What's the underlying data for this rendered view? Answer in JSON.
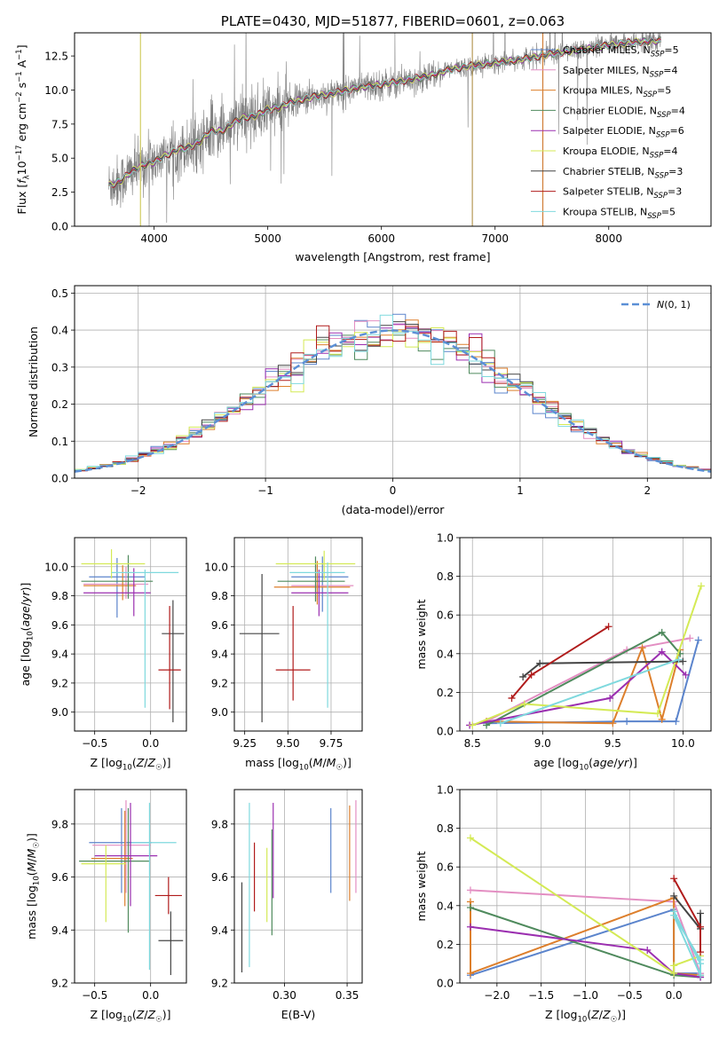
{
  "colors": {
    "Chabrier MILES": "#5b84cc",
    "Salpeter MILES": "#e38ec2",
    "Kroupa MILES": "#dd7f2c",
    "Chabrier ELODIE": "#4f8a5d",
    "Salpeter ELODIE": "#9b2fb0",
    "Kroupa ELODIE": "#d4ea55",
    "Chabrier STELIB": "#444444",
    "Salpeter STELIB": "#b01b1b",
    "Kroupa STELIB": "#7fd9de",
    "data": "#7f7f7f",
    "normal": "#5b8fd6"
  },
  "chart_data": [
    {
      "id": "spectrum",
      "type": "line",
      "title": "PLATE=0430, MJD=51877, FIBERID=0601, z=0.063",
      "xlabel": "wavelength [Angstrom, rest frame]",
      "ylabel": "Flux [f_λ10^-17 erg cm^-2 s^-1 A^-1]",
      "xlim": [
        3300,
        8900
      ],
      "ylim": [
        0,
        14.2
      ],
      "xticks": [
        4000,
        5000,
        6000,
        7000,
        8000
      ],
      "yticks": [
        0.0,
        2.5,
        5.0,
        7.5,
        10.0,
        12.5
      ],
      "legend_position": "right",
      "grid": false,
      "legend": [
        {
          "label": "Chabrier MILES, N_SSP=5",
          "series": "Chabrier MILES"
        },
        {
          "label": "Salpeter MILES, N_SSP=4",
          "series": "Salpeter MILES"
        },
        {
          "label": "Kroupa MILES, N_SSP=5",
          "series": "Kroupa MILES"
        },
        {
          "label": "Chabrier ELODIE, N_SSP=4",
          "series": "Chabrier ELODIE"
        },
        {
          "label": "Salpeter ELODIE, N_SSP=6",
          "series": "Salpeter ELODIE"
        },
        {
          "label": "Kroupa ELODIE, N_SSP=4",
          "series": "Kroupa ELODIE"
        },
        {
          "label": "Chabrier STELIB, N_SSP=3",
          "series": "Chabrier STELIB"
        },
        {
          "label": "Salpeter STELIB, N_SSP=3",
          "series": "Salpeter STELIB"
        },
        {
          "label": "Kroupa STELIB, N_SSP=5",
          "series": "Kroupa STELIB"
        }
      ],
      "continuum": {
        "x": [
          3600,
          3700,
          3800,
          3900,
          4000,
          4100,
          4200,
          4300,
          4400,
          4500,
          4600,
          4700,
          4800,
          4900,
          5000,
          5100,
          5200,
          5400,
          5600,
          5800,
          6000,
          6200,
          6400,
          6600,
          6800,
          7000,
          7200,
          7400,
          7600,
          7800,
          8000,
          8200,
          8400
        ],
        "y": [
          3.0,
          3.3,
          4.0,
          4.5,
          4.7,
          5.2,
          5.6,
          5.8,
          6.2,
          7.0,
          7.0,
          7.6,
          8.0,
          8.1,
          8.6,
          8.7,
          9.1,
          9.5,
          9.8,
          10.2,
          10.4,
          10.7,
          11.0,
          11.5,
          11.8,
          12.0,
          12.2,
          12.5,
          12.8,
          13.0,
          13.3,
          13.5,
          13.6
        ]
      },
      "vertical_lines": [
        {
          "x": 3880,
          "color": "#d1cd63"
        },
        {
          "x": 6800,
          "color": "#b59a57"
        },
        {
          "x": 7420,
          "color": "#d07d35"
        }
      ]
    },
    {
      "id": "residuals",
      "type": "histogram",
      "xlabel": "(data-model)/error",
      "ylabel": "Normed distribution",
      "xlim": [
        -2.5,
        2.5
      ],
      "ylim": [
        0,
        0.52
      ],
      "xticks": [
        -2,
        -1,
        0,
        1,
        2
      ],
      "yticks": [
        0.0,
        0.1,
        0.2,
        0.3,
        0.4,
        0.5
      ],
      "grid": true,
      "legend_position": "top-right",
      "normal_label": "N(0,1)",
      "bin_width": 0.1,
      "series_names": [
        "Chabrier MILES",
        "Salpeter MILES",
        "Kroupa MILES",
        "Chabrier ELODIE",
        "Salpeter ELODIE",
        "Kroupa ELODIE",
        "Chabrier STELIB",
        "Salpeter STELIB",
        "Kroupa STELIB"
      ]
    },
    {
      "id": "age-vs-Z",
      "type": "errorbar",
      "xlabel": "Z [log10(Z/Z☉)]",
      "ylabel": "age [log10(age/yr)]",
      "xlim": [
        -0.68,
        0.32
      ],
      "ylim": [
        8.87,
        10.2
      ],
      "xticks": [
        -0.5,
        0.0
      ],
      "yticks": [
        9.0,
        9.2,
        9.4,
        9.6,
        9.8,
        10.0
      ],
      "grid": true,
      "points": [
        {
          "series": "Chabrier MILES",
          "x": -0.3,
          "xerr_lo": 0.25,
          "xerr_hi": 0.25,
          "y": 9.93,
          "yerr_lo": 0.28,
          "yerr_hi": 0.13
        },
        {
          "series": "Salpeter MILES",
          "x": -0.22,
          "xerr_lo": 0.38,
          "xerr_hi": 0.2,
          "y": 9.88,
          "yerr_lo": 0.1,
          "yerr_hi": 0.12
        },
        {
          "series": "Kroupa MILES",
          "x": -0.25,
          "xerr_lo": 0.35,
          "xerr_hi": 0.12,
          "y": 9.87,
          "yerr_lo": 0.1,
          "yerr_hi": 0.14
        },
        {
          "series": "Chabrier ELODIE",
          "x": -0.2,
          "xerr_lo": 0.42,
          "xerr_hi": 0.22,
          "y": 9.9,
          "yerr_lo": 0.12,
          "yerr_hi": 0.18
        },
        {
          "series": "Salpeter ELODIE",
          "x": -0.15,
          "xerr_lo": 0.45,
          "xerr_hi": 0.15,
          "y": 9.82,
          "yerr_lo": 0.16,
          "yerr_hi": 0.17
        },
        {
          "series": "Kroupa ELODIE",
          "x": -0.35,
          "xerr_lo": 0.27,
          "xerr_hi": 0.3,
          "y": 10.02,
          "yerr_lo": 0.1,
          "yerr_hi": 0.1
        },
        {
          "series": "Chabrier STELIB",
          "x": 0.2,
          "xerr_lo": 0.1,
          "xerr_hi": 0.1,
          "y": 9.54,
          "yerr_lo": 0.61,
          "yerr_hi": 0.23
        },
        {
          "series": "Salpeter STELIB",
          "x": 0.17,
          "xerr_lo": 0.1,
          "xerr_hi": 0.1,
          "y": 9.29,
          "yerr_lo": 0.27,
          "yerr_hi": 0.44
        },
        {
          "series": "Kroupa STELIB",
          "x": -0.05,
          "xerr_lo": 0.3,
          "xerr_hi": 0.3,
          "y": 9.96,
          "yerr_lo": 0.93,
          "yerr_hi": 0.02
        }
      ]
    },
    {
      "id": "age-vs-mass",
      "type": "errorbar",
      "xlabel": "mass [log10(M/M☉)]",
      "ylabel": "",
      "xlim": [
        9.19,
        9.93
      ],
      "ylim": [
        8.87,
        10.2
      ],
      "xticks": [
        9.25,
        9.5,
        9.75
      ],
      "yticks": [
        9.0,
        9.2,
        9.4,
        9.6,
        9.8,
        10.0
      ],
      "grid": true,
      "points": [
        {
          "series": "Chabrier MILES",
          "x": 9.7,
          "xerr_lo": 0.18,
          "xerr_hi": 0.15,
          "y": 9.93,
          "yerr_lo": 0.24,
          "yerr_hi": 0.14
        },
        {
          "series": "Salpeter MILES",
          "x": 9.67,
          "xerr_lo": 0.15,
          "xerr_hi": 0.21,
          "y": 9.87,
          "yerr_lo": 0.1,
          "yerr_hi": 0.16
        },
        {
          "series": "Kroupa MILES",
          "x": 9.67,
          "xerr_lo": 0.25,
          "xerr_hi": 0.19,
          "y": 9.86,
          "yerr_lo": 0.12,
          "yerr_hi": 0.18
        },
        {
          "series": "Chabrier ELODIE",
          "x": 9.66,
          "xerr_lo": 0.22,
          "xerr_hi": 0.17,
          "y": 9.9,
          "yerr_lo": 0.14,
          "yerr_hi": 0.17
        },
        {
          "series": "Salpeter ELODIE",
          "x": 9.68,
          "xerr_lo": 0.16,
          "xerr_hi": 0.17,
          "y": 9.82,
          "yerr_lo": 0.16,
          "yerr_hi": 0.16
        },
        {
          "series": "Kroupa ELODIE",
          "x": 9.71,
          "xerr_lo": 0.28,
          "xerr_hi": 0.18,
          "y": 10.02,
          "yerr_lo": 0.11,
          "yerr_hi": 0.09
        },
        {
          "series": "Chabrier STELIB",
          "x": 9.35,
          "xerr_lo": 0.13,
          "xerr_hi": 0.1,
          "y": 9.54,
          "yerr_lo": 0.61,
          "yerr_hi": 0.41
        },
        {
          "series": "Salpeter STELIB",
          "x": 9.53,
          "xerr_lo": 0.1,
          "xerr_hi": 0.1,
          "y": 9.29,
          "yerr_lo": 0.21,
          "yerr_hi": 0.44
        },
        {
          "series": "Kroupa STELIB",
          "x": 9.73,
          "xerr_lo": 0.22,
          "xerr_hi": 0.1,
          "y": 9.96,
          "yerr_lo": 0.93,
          "yerr_hi": 0.07
        }
      ]
    },
    {
      "id": "weight-vs-age",
      "type": "line",
      "xlabel": "age [log10(age/yr)]",
      "ylabel": "mass weight",
      "xlim": [
        8.41,
        10.2
      ],
      "ylim": [
        0,
        1.0
      ],
      "xticks": [
        8.5,
        9.0,
        9.5,
        10.0
      ],
      "yticks": [
        0.0,
        0.2,
        0.4,
        0.6,
        0.8,
        1.0
      ],
      "grid": true,
      "series": [
        {
          "name": "Chabrier MILES",
          "x": [
            8.6,
            9.6,
            9.95,
            10.11
          ],
          "y": [
            0.04,
            0.05,
            0.05,
            0.47
          ]
        },
        {
          "name": "Salpeter MILES",
          "x": [
            8.6,
            9.6,
            10.05
          ],
          "y": [
            0.05,
            0.42,
            0.48
          ]
        },
        {
          "name": "Kroupa MILES",
          "x": [
            8.6,
            9.5,
            9.71,
            9.85,
            9.98
          ],
          "y": [
            0.05,
            0.04,
            0.43,
            0.06,
            0.42
          ]
        },
        {
          "name": "Chabrier ELODIE",
          "x": [
            8.6,
            9.85,
            9.98
          ],
          "y": [
            0.03,
            0.51,
            0.4
          ]
        },
        {
          "name": "Salpeter ELODIE",
          "x": [
            8.48,
            9.48,
            9.85,
            10.02
          ],
          "y": [
            0.03,
            0.17,
            0.41,
            0.29
          ]
        },
        {
          "name": "Kroupa ELODIE",
          "x": [
            8.5,
            8.87,
            9.82,
            10.13
          ],
          "y": [
            0.03,
            0.14,
            0.09,
            0.75
          ]
        },
        {
          "name": "Chabrier STELIB",
          "x": [
            8.86,
            8.98,
            10.0
          ],
          "y": [
            0.28,
            0.35,
            0.36
          ]
        },
        {
          "name": "Salpeter STELIB",
          "x": [
            8.78,
            8.92,
            9.47
          ],
          "y": [
            0.17,
            0.29,
            0.54
          ]
        },
        {
          "name": "Kroupa STELIB",
          "x": [
            8.7,
            9.97
          ],
          "y": [
            0.04,
            0.37
          ]
        }
      ]
    },
    {
      "id": "mass-vs-Z",
      "type": "errorbar",
      "xlabel": "Z [log10(Z/Z☉)]",
      "ylabel": "mass [log10(M/M☉)]",
      "xlim": [
        -0.68,
        0.32
      ],
      "ylim": [
        9.2,
        9.93
      ],
      "xticks": [
        -0.5,
        0.0
      ],
      "yticks": [
        9.2,
        9.4,
        9.6,
        9.8
      ],
      "grid": true,
      "points": [
        {
          "series": "Chabrier MILES",
          "x": -0.26,
          "xerr_lo": 0.29,
          "xerr_hi": 0.27,
          "y": 9.73,
          "yerr_lo": 0.19,
          "yerr_hi": 0.13
        },
        {
          "series": "Salpeter MILES",
          "x": -0.22,
          "xerr_lo": 0.3,
          "xerr_hi": 0.22,
          "y": 9.72,
          "yerr_lo": 0.18,
          "yerr_hi": 0.17
        },
        {
          "series": "Kroupa MILES",
          "x": -0.23,
          "xerr_lo": 0.3,
          "xerr_hi": 0.07,
          "y": 9.67,
          "yerr_lo": 0.18,
          "yerr_hi": 0.18
        },
        {
          "series": "Chabrier ELODIE",
          "x": -0.2,
          "xerr_lo": 0.44,
          "xerr_hi": 0.19,
          "y": 9.66,
          "yerr_lo": 0.27,
          "yerr_hi": 0.2
        },
        {
          "series": "Salpeter ELODIE",
          "x": -0.18,
          "xerr_lo": 0.32,
          "xerr_hi": 0.24,
          "y": 9.68,
          "yerr_lo": 0.19,
          "yerr_hi": 0.2
        },
        {
          "series": "Kroupa ELODIE",
          "x": -0.4,
          "xerr_lo": 0.22,
          "xerr_hi": 0.18,
          "y": 9.65,
          "yerr_lo": 0.22,
          "yerr_hi": 0.07
        },
        {
          "series": "Chabrier STELIB",
          "x": 0.18,
          "xerr_lo": 0.11,
          "xerr_hi": 0.11,
          "y": 9.36,
          "yerr_lo": 0.13,
          "yerr_hi": 0.11
        },
        {
          "series": "Salpeter STELIB",
          "x": 0.16,
          "xerr_lo": 0.12,
          "xerr_hi": 0.12,
          "y": 9.53,
          "yerr_lo": 0.07,
          "yerr_hi": 0.07
        },
        {
          "series": "Kroupa STELIB",
          "x": -0.01,
          "xerr_lo": 0.16,
          "xerr_hi": 0.24,
          "y": 9.73,
          "yerr_lo": 0.48,
          "yerr_hi": 0.15
        }
      ]
    },
    {
      "id": "EBV",
      "type": "errorbar",
      "xlabel": "E(B-V)",
      "ylabel": "",
      "xlim": [
        0.26,
        0.362
      ],
      "ylim": [
        9.2,
        9.93
      ],
      "xticks": [
        0.3,
        0.35
      ],
      "yticks": [
        9.2,
        9.4,
        9.6,
        9.8
      ],
      "grid": true,
      "points": [
        {
          "series": "Chabrier MILES",
          "x": 0.337,
          "y": 9.7,
          "yerr_lo": 0.16,
          "yerr_hi": 0.16
        },
        {
          "series": "Salpeter MILES",
          "x": 0.357,
          "y": 9.72,
          "yerr_lo": 0.18,
          "yerr_hi": 0.17
        },
        {
          "series": "Kroupa MILES",
          "x": 0.352,
          "y": 9.69,
          "yerr_lo": 0.18,
          "yerr_hi": 0.18
        },
        {
          "series": "Chabrier ELODIE",
          "x": 0.29,
          "y": 9.63,
          "yerr_lo": 0.25,
          "yerr_hi": 0.15
        },
        {
          "series": "Salpeter ELODIE",
          "x": 0.291,
          "y": 9.7,
          "yerr_lo": 0.18,
          "yerr_hi": 0.18
        },
        {
          "series": "Kroupa ELODIE",
          "x": 0.286,
          "y": 9.57,
          "yerr_lo": 0.14,
          "yerr_hi": 0.14
        },
        {
          "series": "Chabrier STELIB",
          "x": 0.266,
          "y": 9.41,
          "yerr_lo": 0.17,
          "yerr_hi": 0.17
        },
        {
          "series": "Salpeter STELIB",
          "x": 0.276,
          "y": 9.6,
          "yerr_lo": 0.13,
          "yerr_hi": 0.13
        },
        {
          "series": "Kroupa STELIB",
          "x": 0.272,
          "y": 9.57,
          "yerr_lo": 0.31,
          "yerr_hi": 0.31
        }
      ]
    },
    {
      "id": "weight-vs-Z",
      "type": "line",
      "xlabel": "Z [log10(Z/Z☉)]",
      "ylabel": "mass weight",
      "xlim": [
        -2.42,
        0.42
      ],
      "ylim": [
        0,
        1.0
      ],
      "xticks": [
        -2.0,
        -1.5,
        -1.0,
        -0.5,
        0.0
      ],
      "yticks": [
        0.0,
        0.2,
        0.4,
        0.6,
        0.8,
        1.0
      ],
      "grid": true,
      "series": [
        {
          "name": "Chabrier MILES",
          "x": [
            -2.3,
            0.0,
            0.0,
            0.3
          ],
          "y": [
            0.04,
            0.38,
            0.05,
            0.05
          ]
        },
        {
          "name": "Salpeter MILES",
          "x": [
            -2.3,
            0.0,
            0.3
          ],
          "y": [
            0.48,
            0.42,
            0.05
          ]
        },
        {
          "name": "Kroupa MILES",
          "x": [
            -2.3,
            -2.3,
            0.0,
            0.0,
            0.3
          ],
          "y": [
            0.42,
            0.05,
            0.44,
            0.05,
            0.04
          ]
        },
        {
          "name": "Chabrier ELODIE",
          "x": [
            -2.3,
            0.0,
            0.3
          ],
          "y": [
            0.39,
            0.04,
            0.03
          ]
        },
        {
          "name": "Salpeter ELODIE",
          "x": [
            -2.3,
            -0.3,
            0.0,
            0.3
          ],
          "y": [
            0.29,
            0.17,
            0.05,
            0.03
          ]
        },
        {
          "name": "Kroupa ELODIE",
          "x": [
            -2.3,
            0.0,
            0.0,
            0.3
          ],
          "y": [
            0.75,
            0.05,
            0.09,
            0.14
          ]
        },
        {
          "name": "Chabrier STELIB",
          "x": [
            0.0,
            0.3,
            0.3
          ],
          "y": [
            0.45,
            0.28,
            0.36
          ]
        },
        {
          "name": "Salpeter STELIB",
          "x": [
            0.0,
            0.3,
            0.3
          ],
          "y": [
            0.54,
            0.29,
            0.16
          ]
        },
        {
          "name": "Kroupa STELIB",
          "x": [
            0.0,
            0.3,
            0.3,
            0.0,
            0.3
          ],
          "y": [
            0.37,
            0.1,
            0.04,
            0.35,
            0.12
          ]
        }
      ]
    }
  ]
}
